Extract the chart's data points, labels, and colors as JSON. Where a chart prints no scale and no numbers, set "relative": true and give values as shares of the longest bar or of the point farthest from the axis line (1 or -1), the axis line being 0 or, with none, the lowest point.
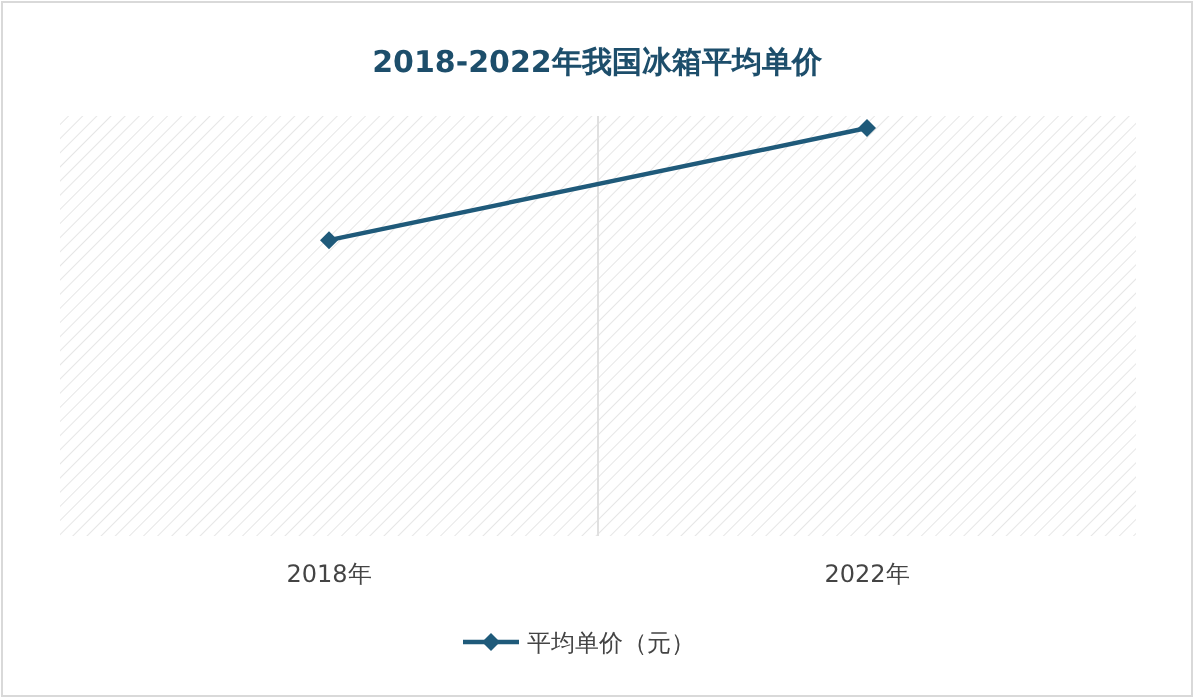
{
  "chart_data": {
    "type": "line",
    "title": "2018-2022年我国冰箱平均单价",
    "categories": [
      "2018年",
      "2022年"
    ],
    "series": [
      {
        "name": "平均单价（元）",
        "color": "#1f5a7a",
        "values": [
          0.725,
          1
        ]
      }
    ],
    "relative": true,
    "legend": "bottom",
    "marker": "diamond"
  }
}
